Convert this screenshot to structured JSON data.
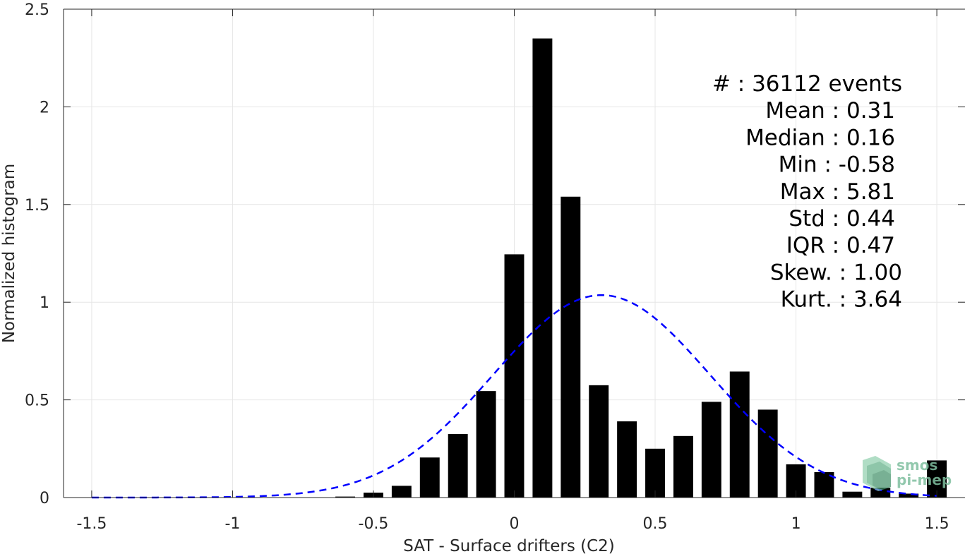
{
  "chart_data": {
    "type": "bar",
    "xlabel": "SAT - Surface drifters (C2)",
    "ylabel": "Normalized histogram",
    "xlim": [
      -1.6,
      1.6
    ],
    "ylim": [
      0,
      2.5
    ],
    "xticks": [
      -1.5,
      -1,
      -0.5,
      0,
      0.5,
      1,
      1.5
    ],
    "xtick_labels": [
      "-1.5",
      "-1",
      "-0.5",
      "0",
      "0.5",
      "1",
      "1.5"
    ],
    "yticks": [
      0,
      0.5,
      1,
      1.5,
      2,
      2.5
    ],
    "ytick_labels": [
      "0",
      "0.5",
      "1",
      "1.5",
      "2",
      "2.5"
    ],
    "grid": true,
    "bin_width": 0.1,
    "bar_color": "#000000",
    "bins": [
      {
        "x": -0.6,
        "value": 0.005
      },
      {
        "x": -0.5,
        "value": 0.025
      },
      {
        "x": -0.4,
        "value": 0.06
      },
      {
        "x": -0.3,
        "value": 0.205
      },
      {
        "x": -0.2,
        "value": 0.325
      },
      {
        "x": -0.1,
        "value": 0.545
      },
      {
        "x": 0.0,
        "value": 1.245
      },
      {
        "x": 0.1,
        "value": 2.35
      },
      {
        "x": 0.2,
        "value": 1.54
      },
      {
        "x": 0.3,
        "value": 0.575
      },
      {
        "x": 0.4,
        "value": 0.39
      },
      {
        "x": 0.5,
        "value": 0.25
      },
      {
        "x": 0.6,
        "value": 0.315
      },
      {
        "x": 0.7,
        "value": 0.49
      },
      {
        "x": 0.8,
        "value": 0.645
      },
      {
        "x": 0.9,
        "value": 0.45
      },
      {
        "x": 1.0,
        "value": 0.17
      },
      {
        "x": 1.1,
        "value": 0.13
      },
      {
        "x": 1.2,
        "value": 0.03
      },
      {
        "x": 1.3,
        "value": 0.05
      },
      {
        "x": 1.4,
        "value": 0.02
      },
      {
        "x": 1.5,
        "value": 0.19
      }
    ],
    "fit_curve": {
      "style": "dashed",
      "color": "#0000ff",
      "mean": 0.31,
      "std": 0.385,
      "x_range": [
        -1.5,
        1.5
      ]
    },
    "annotations": [
      {
        "label": "#  : 36112 events"
      },
      {
        "label": "Mean : 0.31"
      },
      {
        "label": "Median : 0.16"
      },
      {
        "label": "Min : -0.58"
      },
      {
        "label": "Max : 5.81"
      },
      {
        "label": "Std : 0.44"
      },
      {
        "label": "IQR : 0.47"
      },
      {
        "label": "Skew. : 1.00"
      },
      {
        "label": "Kurt. : 3.64"
      }
    ]
  },
  "logo": {
    "line1": "smos",
    "line2": "pi-mep"
  }
}
